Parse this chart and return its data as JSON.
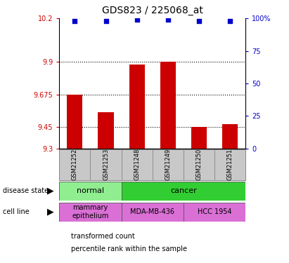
{
  "title": "GDS823 / 225068_at",
  "samples": [
    "GSM21252",
    "GSM21253",
    "GSM21248",
    "GSM21249",
    "GSM21250",
    "GSM21251"
  ],
  "bar_values": [
    9.675,
    9.55,
    9.88,
    9.9,
    9.45,
    9.47
  ],
  "percentile_values": [
    98,
    98,
    99,
    99,
    98,
    98
  ],
  "ylim": [
    9.3,
    10.2
  ],
  "yticks": [
    9.3,
    9.45,
    9.675,
    9.9,
    10.2
  ],
  "ytick_labels": [
    "9.3",
    "9.45",
    "9.675",
    "9.9",
    "10.2"
  ],
  "right_yticks": [
    0,
    25,
    50,
    75,
    100
  ],
  "right_ytick_labels": [
    "0",
    "25",
    "50",
    "75",
    "100%"
  ],
  "bar_color": "#cc0000",
  "percentile_color": "#0000cc",
  "disease_state_groups": [
    {
      "label": "normal",
      "start": 0,
      "end": 2,
      "color": "#90ee90"
    },
    {
      "label": "cancer",
      "start": 2,
      "end": 6,
      "color": "#32cd32"
    }
  ],
  "cell_line_groups": [
    {
      "label": "mammary\nepithelium",
      "start": 0,
      "end": 2,
      "color": "#da70d6"
    },
    {
      "label": "MDA-MB-436",
      "start": 2,
      "end": 4,
      "color": "#da70d6"
    },
    {
      "label": "HCC 1954",
      "start": 4,
      "end": 6,
      "color": "#da70d6"
    }
  ],
  "left_label_disease": "disease state",
  "left_label_cell": "cell line",
  "legend_red": "transformed count",
  "legend_blue": "percentile rank within the sample",
  "dotted_yticks": [
    9.9,
    9.675,
    9.45
  ],
  "bar_width": 0.5
}
